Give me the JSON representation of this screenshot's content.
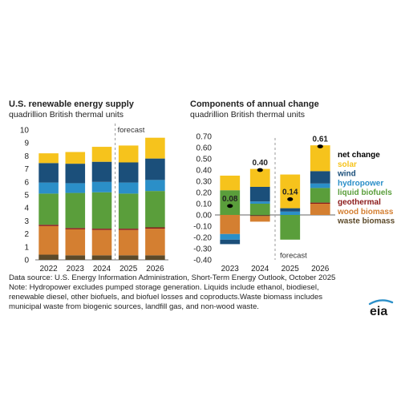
{
  "chart_data": [
    {
      "type": "bar",
      "stacked": true,
      "title": "U.S. renewable energy supply",
      "subtitle": "quadrillion British thermal units",
      "categories": [
        "2022",
        "2023",
        "2024",
        "2025",
        "2026"
      ],
      "ylim": [
        0,
        10
      ],
      "yticks": [
        "0",
        "1",
        "2",
        "3",
        "4",
        "5",
        "6",
        "7",
        "8",
        "9",
        "10"
      ],
      "forecast_label": "forecast",
      "forecast_start_index": 3,
      "series": [
        {
          "key": "waste_biomass",
          "color": "#5c4a2a",
          "values": [
            0.4,
            0.35,
            0.35,
            0.35,
            0.35
          ]
        },
        {
          "key": "wood_biomass",
          "color": "#d47f31",
          "values": [
            2.2,
            2.0,
            1.95,
            1.95,
            2.05
          ]
        },
        {
          "key": "geothermal",
          "color": "#8b1a1a",
          "values": [
            0.1,
            0.1,
            0.1,
            0.1,
            0.1
          ]
        },
        {
          "key": "liquid_biofuels",
          "color": "#5a9e3b",
          "values": [
            2.4,
            2.7,
            2.8,
            2.7,
            2.8
          ]
        },
        {
          "key": "hydropower",
          "color": "#2b8fc8",
          "values": [
            0.85,
            0.75,
            0.8,
            0.85,
            0.85
          ]
        },
        {
          "key": "wind",
          "color": "#1b4f7a",
          "values": [
            1.5,
            1.5,
            1.55,
            1.55,
            1.65
          ]
        },
        {
          "key": "solar",
          "color": "#f6c31c",
          "values": [
            0.75,
            0.9,
            1.15,
            1.3,
            1.6
          ]
        }
      ]
    },
    {
      "type": "bar",
      "stacked": true,
      "title": "Components of annual change",
      "subtitle": "quadrillion British thermal units",
      "categories": [
        "2023",
        "2024",
        "2025",
        "2026"
      ],
      "ylim": [
        -0.4,
        0.7
      ],
      "yticks": [
        "-0.40",
        "-0.30",
        "-0.20",
        "-0.10",
        "0.00",
        "0.10",
        "0.20",
        "0.30",
        "0.40",
        "0.50",
        "0.60",
        "0.70"
      ],
      "forecast_label": "forecast",
      "forecast_start_index": 2,
      "net_change": {
        "values": [
          0.08,
          0.4,
          0.14,
          0.61
        ],
        "labels": [
          "0.08",
          "0.40",
          "0.14",
          "0.61"
        ]
      },
      "series": [
        {
          "key": "waste_biomass",
          "color": "#5c4a2a",
          "values": [
            0.0,
            -0.01,
            0.0,
            0.0
          ]
        },
        {
          "key": "wood_biomass",
          "color": "#d47f31",
          "values": [
            -0.17,
            -0.05,
            0.0,
            0.1
          ]
        },
        {
          "key": "geothermal",
          "color": "#8b1a1a",
          "values": [
            0.0,
            0.0,
            0.0,
            0.01
          ]
        },
        {
          "key": "liquid_biofuels",
          "color": "#5a9e3b",
          "values": [
            0.22,
            0.1,
            -0.22,
            0.13
          ]
        },
        {
          "key": "hydropower",
          "color": "#2b8fc8",
          "values": [
            -0.05,
            0.02,
            0.03,
            0.04
          ]
        },
        {
          "key": "wind",
          "color": "#1b4f7a",
          "values": [
            -0.04,
            0.13,
            0.03,
            0.11
          ]
        },
        {
          "key": "solar",
          "color": "#f6c31c",
          "values": [
            0.13,
            0.16,
            0.3,
            0.23
          ]
        }
      ]
    }
  ],
  "legend": {
    "placement": "right",
    "items": [
      {
        "label": "net change",
        "color": "#000000"
      },
      {
        "label": "solar",
        "color": "#f6c31c"
      },
      {
        "label": "wind",
        "color": "#1b4f7a"
      },
      {
        "label": "hydropower",
        "color": "#2b8fc8"
      },
      {
        "label": "liquid biofuels",
        "color": "#5a9e3b"
      },
      {
        "label": "geothermal",
        "color": "#8b1a1a"
      },
      {
        "label": "wood biomass",
        "color": "#d47f31"
      },
      {
        "label": "waste biomass",
        "color": "#5c4a2a"
      }
    ]
  },
  "notes": {
    "source": "Data source: U.S. Energy Information Administration, Short-Term Energy Outlook, October 2025",
    "note_line1": "Note: Hydropower excludes pumped storage generation. Liquids include ethanol, biodiesel,",
    "note_line2": "renewable diesel, other biofuels, and biofuel losses and coproducts.Waste biomass includes",
    "note_line3": "municipal waste from biogenic sources, landfill gas, and non-wood waste."
  },
  "logo": {
    "text": "eia",
    "color": "#1a1a1a",
    "accent": "#2b8fc8"
  }
}
